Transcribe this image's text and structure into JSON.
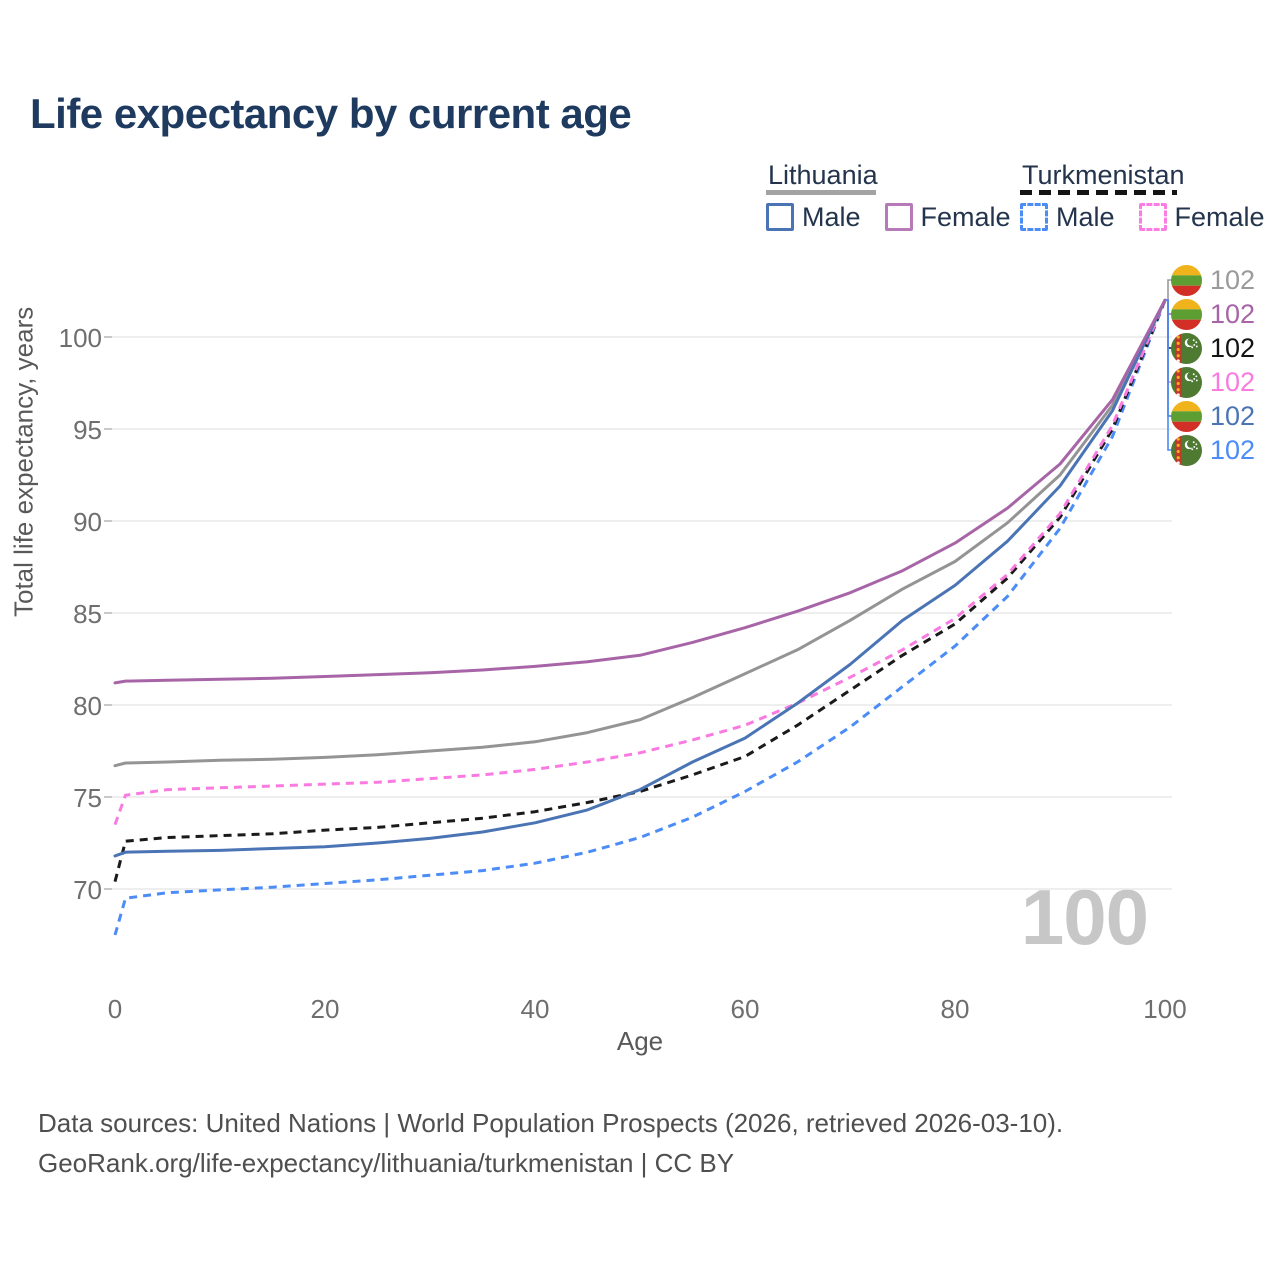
{
  "title": "Life expectancy by current age",
  "legend": {
    "groups": [
      {
        "label": "Lithuania",
        "line_style": "solid",
        "underline_color": "#a3a3a3",
        "items": [
          {
            "label": "Male",
            "color": "#4a74b4",
            "dashed": false
          },
          {
            "label": "Female",
            "color": "#b77ab8",
            "dashed": false
          }
        ]
      },
      {
        "label": "Turkmenistan",
        "line_style": "dashed",
        "underline_color": "#141414",
        "items": [
          {
            "label": "Male",
            "color": "#4b8cf7",
            "dashed": true
          },
          {
            "label": "Female",
            "color": "#fb7ce2",
            "dashed": true
          }
        ]
      }
    ]
  },
  "axes": {
    "y_title": "Total life expectancy, years",
    "x_title": "Age",
    "y_ticks": [
      70,
      75,
      80,
      85,
      90,
      95,
      100
    ],
    "x_ticks": [
      0,
      20,
      40,
      60,
      80,
      100
    ]
  },
  "watermark_age": "100",
  "end_labels": [
    {
      "flag": "lithuania",
      "value": "102",
      "color": "#9a9a9a",
      "series": "lt_both"
    },
    {
      "flag": "lithuania",
      "value": "102",
      "color": "#a765a7",
      "series": "lt_female"
    },
    {
      "flag": "turkmenistan",
      "value": "102",
      "color": "#141414",
      "series": "tm_both"
    },
    {
      "flag": "turkmenistan",
      "value": "102",
      "color": "#f97ae0",
      "series": "tm_female"
    },
    {
      "flag": "lithuania",
      "value": "102",
      "color": "#4a74b4",
      "series": "lt_male"
    },
    {
      "flag": "turkmenistan",
      "value": "102",
      "color": "#4b8cf7",
      "series": "tm_male"
    }
  ],
  "footer": {
    "line1": "Data sources: United Nations | World Population Prospects (2026, retrieved 2026-03-10).",
    "line2": "GeoRank.org/life-expectancy/lithuania/turkmenistan | CC BY"
  },
  "chart_data": {
    "type": "line",
    "xlabel": "Age",
    "ylabel": "Total life expectancy, years",
    "xlim": [
      0,
      100
    ],
    "ylim": [
      66,
      103.5
    ],
    "grid": "horizontal-only",
    "legend_position": "top-right",
    "x": [
      0,
      1,
      5,
      10,
      15,
      20,
      25,
      30,
      35,
      40,
      45,
      50,
      55,
      60,
      65,
      70,
      75,
      80,
      85,
      90,
      95,
      100
    ],
    "series": [
      {
        "id": "tm_male",
        "name": "Turkmenistan Male",
        "country": "Turkmenistan",
        "sex": "male",
        "color": "#4b8cf7",
        "dashed": true,
        "values": [
          67.5,
          69.5,
          69.8,
          69.95,
          70.1,
          70.3,
          70.5,
          70.75,
          71.0,
          71.4,
          72.0,
          72.8,
          73.9,
          75.3,
          76.9,
          78.8,
          81.0,
          83.2,
          85.9,
          89.6,
          94.6,
          102
        ]
      },
      {
        "id": "tm_both",
        "name": "Turkmenistan Both sexes",
        "country": "Turkmenistan",
        "sex": "both",
        "color": "#1a1a1a",
        "dashed": true,
        "values": [
          70.4,
          72.6,
          72.8,
          72.9,
          73.0,
          73.2,
          73.35,
          73.6,
          73.85,
          74.2,
          74.7,
          75.3,
          76.2,
          77.2,
          78.9,
          80.8,
          82.7,
          84.4,
          86.9,
          90.2,
          95.0,
          102
        ]
      },
      {
        "id": "tm_female",
        "name": "Turkmenistan Female",
        "country": "Turkmenistan",
        "sex": "female",
        "color": "#f97ae0",
        "dashed": true,
        "values": [
          73.5,
          75.1,
          75.4,
          75.5,
          75.6,
          75.7,
          75.8,
          76.0,
          76.2,
          76.5,
          76.9,
          77.4,
          78.1,
          78.9,
          80.1,
          81.5,
          83.0,
          84.7,
          87.1,
          90.4,
          95.2,
          102
        ]
      },
      {
        "id": "lt_both",
        "name": "Lithuania Both sexes",
        "country": "Lithuania",
        "sex": "both",
        "color": "#949494",
        "dashed": false,
        "values": [
          76.7,
          76.85,
          76.9,
          77.0,
          77.05,
          77.15,
          77.3,
          77.5,
          77.7,
          78.0,
          78.5,
          79.2,
          80.4,
          81.7,
          83.0,
          84.6,
          86.3,
          87.8,
          89.9,
          92.5,
          96.3,
          102
        ]
      },
      {
        "id": "lt_male",
        "name": "Lithuania Male",
        "country": "Lithuania",
        "sex": "male",
        "color": "#4a74b4",
        "dashed": false,
        "values": [
          71.8,
          72.0,
          72.05,
          72.1,
          72.2,
          72.3,
          72.5,
          72.75,
          73.1,
          73.6,
          74.3,
          75.4,
          76.9,
          78.2,
          80.1,
          82.2,
          84.6,
          86.5,
          88.9,
          91.9,
          96.0,
          102
        ]
      },
      {
        "id": "lt_female",
        "name": "Lithuania Female",
        "country": "Lithuania",
        "sex": "female",
        "color": "#a765a7",
        "dashed": false,
        "values": [
          81.2,
          81.3,
          81.35,
          81.4,
          81.45,
          81.55,
          81.65,
          81.75,
          81.9,
          82.1,
          82.35,
          82.7,
          83.4,
          84.2,
          85.1,
          86.1,
          87.3,
          88.8,
          90.7,
          93.1,
          96.6,
          102
        ]
      }
    ],
    "end_value_all_series": 102,
    "gridline_color": "#e9e9e9"
  }
}
